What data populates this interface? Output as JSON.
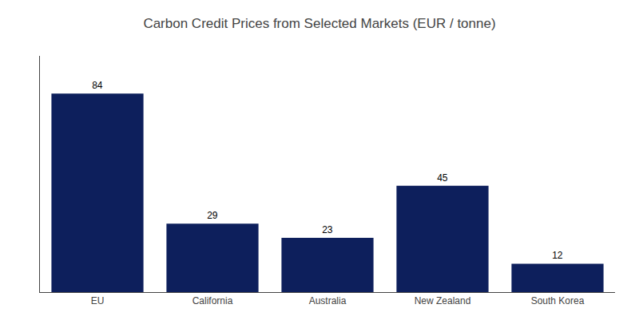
{
  "chart_data": {
    "type": "bar",
    "title": "Carbon Credit Prices from Selected Markets (EUR / tonne)",
    "categories": [
      "EU",
      "California",
      "Australia",
      "New Zealand",
      "South Korea"
    ],
    "values": [
      84,
      29,
      23,
      45,
      12
    ],
    "color": "#0d1f5c",
    "ylim": [
      0,
      100
    ],
    "grid": false,
    "data_labels": true,
    "tick_labels": "x"
  }
}
